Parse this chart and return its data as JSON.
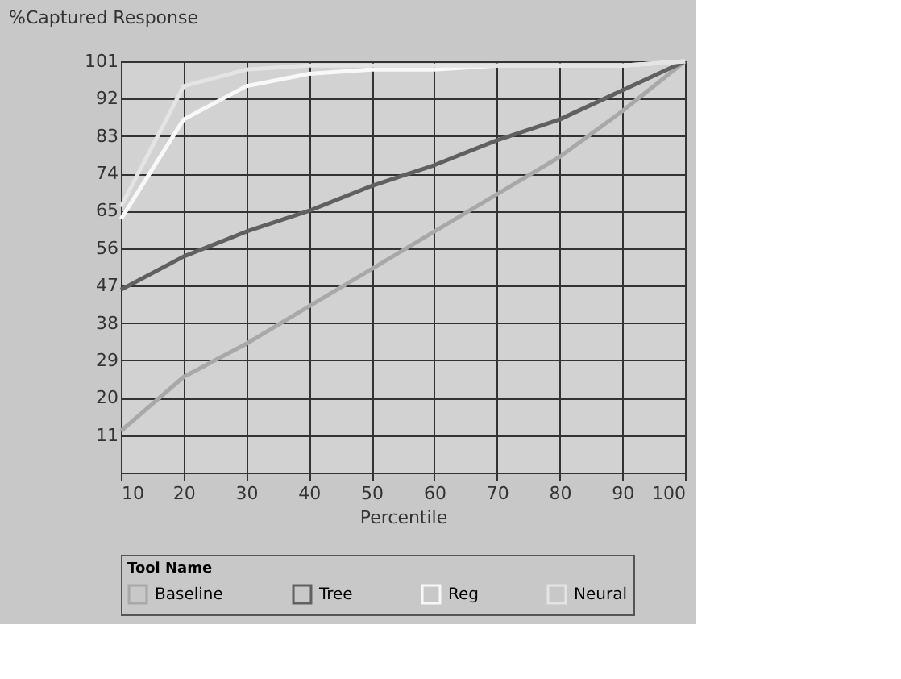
{
  "chart_data": {
    "type": "line",
    "ylabel": "%Captured Response",
    "xlabel": "Percentile",
    "legend_title": "Tool Name",
    "x": [
      10,
      20,
      30,
      40,
      50,
      60,
      70,
      80,
      90,
      100
    ],
    "series": [
      {
        "name": "Baseline",
        "color": "#a8a8a8",
        "values": [
          12,
          25,
          33,
          42,
          51,
          60,
          69,
          78,
          89,
          101
        ]
      },
      {
        "name": "Tree",
        "color": "#606060",
        "values": [
          46,
          54,
          60,
          65,
          71,
          76,
          82,
          87,
          94,
          101
        ]
      },
      {
        "name": "Reg",
        "color": "#f8f8f8",
        "values": [
          63,
          87,
          95,
          98,
          99,
          99,
          100,
          100,
          100,
          101
        ]
      },
      {
        "name": "Neural",
        "color": "#e4e4e4",
        "values": [
          66,
          95,
          99,
          100,
          100,
          100,
          100,
          100,
          100,
          101
        ]
      }
    ],
    "xlim": [
      10,
      100
    ],
    "xticks": [
      10,
      20,
      30,
      40,
      50,
      60,
      70,
      80,
      90,
      100
    ],
    "ylim": [
      2,
      101
    ],
    "yticks": [
      11,
      20,
      29,
      38,
      47,
      56,
      65,
      74,
      83,
      92,
      101
    ],
    "grid": true,
    "legend": "bottom",
    "marker": "none",
    "line_style": "solid"
  }
}
